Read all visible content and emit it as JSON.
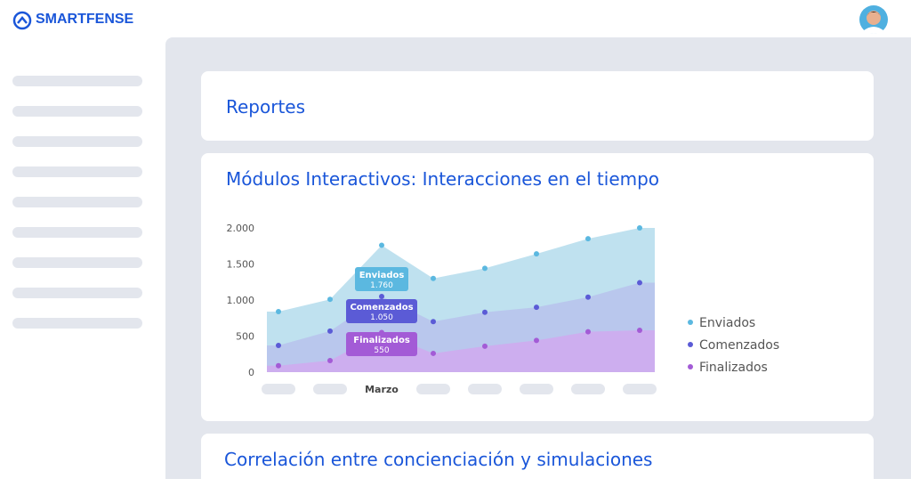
{
  "header": {
    "brand": "SMARTFENSE"
  },
  "cards": {
    "reports_title": "Reportes",
    "correlation_title": "Correlación entre concienciación y simulaciones"
  },
  "chart_data": {
    "type": "area",
    "title": "Módulos Interactivos: Interacciones en el tiempo",
    "categories": [
      null,
      null,
      "Marzo",
      null,
      null,
      null,
      null,
      null
    ],
    "series": [
      {
        "name": "Enviados",
        "color": "#5bb8e0",
        "fill": "#b4dcec",
        "values": [
          840,
          1010,
          1760,
          1300,
          1440,
          1640,
          1850,
          2000
        ],
        "value_labels": [
          null,
          null,
          "1.760",
          null,
          null,
          null,
          null,
          null
        ]
      },
      {
        "name": "Comenzados",
        "color": "#5b5bd6",
        "fill": "#b7c2ec",
        "values": [
          370,
          570,
          1050,
          700,
          830,
          900,
          1040,
          1240
        ],
        "value_labels": [
          null,
          null,
          "1.050",
          null,
          null,
          null,
          null,
          null
        ]
      },
      {
        "name": "Finalizados",
        "color": "#a35bd6",
        "fill": "#d0a9ef",
        "values": [
          90,
          160,
          550,
          260,
          360,
          440,
          560,
          580
        ],
        "value_labels": [
          null,
          null,
          "550",
          null,
          null,
          null,
          null,
          null
        ]
      }
    ],
    "ylim": [
      0,
      2000
    ],
    "yticks": [
      0,
      500,
      {
        "value": 1000,
        "label": "1.000"
      },
      {
        "value": 1500,
        "label": "1.500"
      },
      {
        "value": 2000,
        "label": "2.000"
      }
    ],
    "legend": "right"
  }
}
